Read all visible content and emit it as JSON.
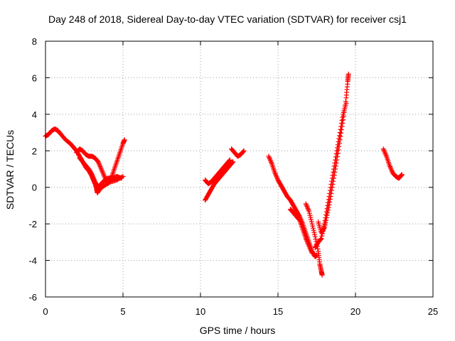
{
  "chart_data": {
    "type": "scatter",
    "title": "Day 248 of 2018, Sidereal Day-to-day VTEC variation (SDTVAR) for receiver csj1",
    "xlabel": "GPS time / hours",
    "ylabel": "SDTVAR / TECUs",
    "xlim": [
      0,
      25
    ],
    "ylim": [
      -6,
      8
    ],
    "xticks": [
      0,
      5,
      10,
      15,
      20,
      25
    ],
    "yticks": [
      -6,
      -4,
      -2,
      0,
      2,
      4,
      6,
      8
    ],
    "grid": true,
    "marker": "+",
    "color": "#ff0000",
    "series": [
      {
        "name": "csj1",
        "segments": [
          [
            [
              0.0,
              2.8
            ],
            [
              0.2,
              2.9
            ],
            [
              0.4,
              3.1
            ],
            [
              0.6,
              3.2
            ],
            [
              0.8,
              3.1
            ],
            [
              1.0,
              2.9
            ],
            [
              1.3,
              2.6
            ],
            [
              1.6,
              2.4
            ],
            [
              1.8,
              2.2
            ],
            [
              2.0,
              2.0
            ],
            [
              2.2,
              1.7
            ],
            [
              2.4,
              1.4
            ],
            [
              2.6,
              1.1
            ],
            [
              2.8,
              0.9
            ],
            [
              3.0,
              0.6
            ],
            [
              3.1,
              0.4
            ],
            [
              3.2,
              0.2
            ],
            [
              3.3,
              -0.1
            ],
            [
              3.35,
              -0.3
            ],
            [
              3.5,
              -0.1
            ],
            [
              3.8,
              0.1
            ],
            [
              4.2,
              0.3
            ],
            [
              4.6,
              0.4
            ],
            [
              5.0,
              0.6
            ]
          ],
          [
            [
              2.0,
              1.9
            ],
            [
              2.2,
              2.1
            ],
            [
              2.4,
              2.0
            ],
            [
              2.6,
              1.8
            ],
            [
              2.8,
              1.7
            ],
            [
              3.0,
              1.7
            ],
            [
              3.2,
              1.6
            ],
            [
              3.4,
              1.4
            ],
            [
              3.6,
              1.0
            ],
            [
              3.8,
              0.6
            ],
            [
              4.0,
              0.2
            ],
            [
              4.2,
              0.4
            ],
            [
              4.4,
              0.9
            ],
            [
              4.6,
              1.4
            ],
            [
              4.8,
              1.9
            ],
            [
              5.0,
              2.4
            ],
            [
              5.1,
              2.6
            ]
          ],
          [
            [
              2.2,
              1.6
            ],
            [
              2.5,
              1.3
            ],
            [
              2.8,
              1.0
            ],
            [
              3.0,
              0.7
            ],
            [
              3.2,
              0.3
            ],
            [
              3.4,
              0.0
            ],
            [
              3.7,
              0.3
            ],
            [
              4.0,
              0.5
            ],
            [
              4.3,
              0.5
            ],
            [
              4.6,
              0.6
            ],
            [
              4.9,
              0.5
            ]
          ],
          [
            [
              10.3,
              -0.7
            ],
            [
              10.5,
              -0.4
            ],
            [
              10.7,
              -0.1
            ],
            [
              10.9,
              0.2
            ],
            [
              11.1,
              0.4
            ],
            [
              11.3,
              0.6
            ],
            [
              11.5,
              0.8
            ],
            [
              11.7,
              1.0
            ],
            [
              11.9,
              1.2
            ],
            [
              12.1,
              1.4
            ]
          ],
          [
            [
              10.3,
              0.4
            ],
            [
              10.5,
              0.2
            ],
            [
              10.7,
              0.3
            ],
            [
              10.9,
              0.5
            ],
            [
              11.1,
              0.7
            ],
            [
              11.3,
              0.9
            ],
            [
              11.5,
              1.1
            ],
            [
              11.7,
              1.3
            ],
            [
              11.9,
              1.5
            ]
          ],
          [
            [
              12.0,
              2.1
            ],
            [
              12.2,
              1.9
            ],
            [
              12.4,
              1.7
            ],
            [
              12.6,
              1.8
            ],
            [
              12.8,
              2.0
            ]
          ],
          [
            [
              14.4,
              1.7
            ],
            [
              14.6,
              1.3
            ],
            [
              14.8,
              0.8
            ],
            [
              15.0,
              0.4
            ],
            [
              15.2,
              0.1
            ],
            [
              15.4,
              -0.2
            ],
            [
              15.6,
              -0.5
            ],
            [
              15.8,
              -0.7
            ],
            [
              16.0,
              -1.0
            ],
            [
              16.2,
              -1.3
            ],
            [
              16.4,
              -1.6
            ],
            [
              16.6,
              -2.0
            ],
            [
              16.8,
              -2.5
            ],
            [
              17.0,
              -3.0
            ],
            [
              17.2,
              -3.5
            ],
            [
              17.4,
              -3.8
            ],
            [
              17.5,
              -3.7
            ]
          ],
          [
            [
              15.8,
              -1.2
            ],
            [
              16.0,
              -1.4
            ],
            [
              16.2,
              -1.6
            ],
            [
              16.4,
              -1.8
            ],
            [
              16.6,
              -2.3
            ],
            [
              16.8,
              -2.8
            ],
            [
              17.0,
              -3.2
            ],
            [
              17.2,
              -3.6
            ]
          ],
          [
            [
              16.8,
              -0.9
            ],
            [
              17.0,
              -1.3
            ],
            [
              17.2,
              -2.0
            ],
            [
              17.4,
              -2.7
            ],
            [
              17.6,
              -3.5
            ],
            [
              17.7,
              -4.2
            ],
            [
              17.8,
              -4.6
            ],
            [
              17.85,
              -4.8
            ]
          ],
          [
            [
              17.6,
              -1.9
            ],
            [
              17.8,
              -2.5
            ],
            [
              18.0,
              -2.2
            ],
            [
              18.2,
              -1.4
            ],
            [
              18.4,
              -0.5
            ],
            [
              18.6,
              0.5
            ],
            [
              18.8,
              1.5
            ],
            [
              19.0,
              2.6
            ],
            [
              19.2,
              3.7
            ],
            [
              19.4,
              4.9
            ],
            [
              19.5,
              5.8
            ],
            [
              19.55,
              6.2
            ]
          ],
          [
            [
              17.4,
              -3.3
            ],
            [
              17.6,
              -3.0
            ],
            [
              17.8,
              -2.8
            ],
            [
              18.0,
              -2.0
            ],
            [
              18.2,
              -1.0
            ],
            [
              18.4,
              0.0
            ],
            [
              18.6,
              1.0
            ],
            [
              18.8,
              2.0
            ],
            [
              19.0,
              3.0
            ],
            [
              19.2,
              4.0
            ],
            [
              19.4,
              4.6
            ]
          ],
          [
            [
              21.8,
              2.1
            ],
            [
              22.0,
              1.7
            ],
            [
              22.2,
              1.2
            ],
            [
              22.4,
              0.8
            ],
            [
              22.6,
              0.6
            ],
            [
              22.8,
              0.5
            ],
            [
              22.9,
              0.6
            ],
            [
              23.0,
              0.7
            ]
          ]
        ]
      }
    ]
  }
}
